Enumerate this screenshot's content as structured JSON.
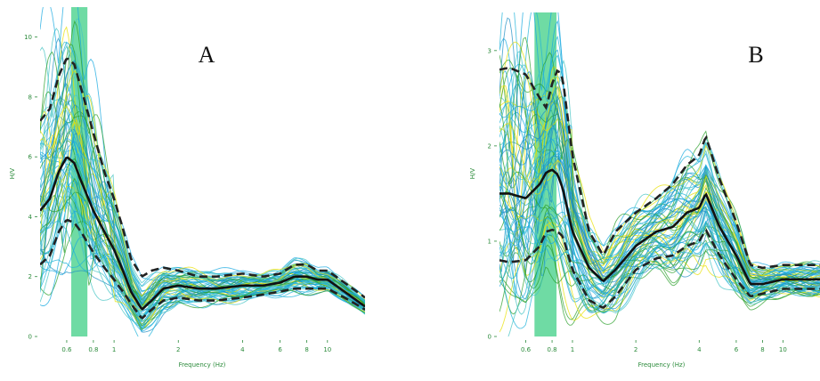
{
  "chart_data": [
    {
      "type": "line",
      "panel_label": "A",
      "xlabel": "Frequency (Hz)",
      "ylabel": "H/V",
      "x_scale": "log",
      "xlim": [
        0.45,
        15
      ],
      "ylim": [
        0,
        11
      ],
      "x_ticks": [
        0.6,
        0.8,
        1,
        2,
        4,
        6,
        8,
        10
      ],
      "x_tick_labels": [
        "0.6",
        "0.8",
        "1",
        "2",
        "4",
        "6",
        "8",
        "10"
      ],
      "y_ticks": [
        0,
        2,
        4,
        6,
        8,
        10
      ],
      "y_tick_labels": [
        "0",
        "2",
        "4",
        "6",
        "8",
        "10"
      ],
      "highlight_band": [
        0.63,
        0.75
      ],
      "grid": false,
      "colors": {
        "mean": "#111111",
        "bounds": "#222222",
        "band": "#3fcf86",
        "window_colors": [
          "#1fb3d9",
          "#17a8e0",
          "#2ca02c",
          "#e8e000",
          "#44c4c4",
          "#1f8fc4"
        ]
      },
      "x": [
        0.45,
        0.5,
        0.55,
        0.6,
        0.65,
        0.7,
        0.8,
        0.9,
        1.0,
        1.1,
        1.2,
        1.35,
        1.5,
        1.7,
        2.0,
        2.5,
        3.0,
        4.0,
        5.0,
        6.0,
        7.0,
        8.0,
        9.0,
        10.0,
        12.0,
        15.0
      ],
      "series": [
        {
          "role": "mean",
          "values": [
            4.2,
            4.6,
            5.5,
            6.0,
            5.8,
            5.2,
            4.2,
            3.5,
            2.9,
            2.2,
            1.5,
            0.9,
            1.2,
            1.6,
            1.7,
            1.6,
            1.6,
            1.7,
            1.7,
            1.8,
            2.0,
            2.0,
            1.9,
            1.9,
            1.5,
            1.0
          ]
        },
        {
          "role": "upper",
          "values": [
            7.2,
            7.6,
            8.7,
            9.3,
            9.1,
            8.3,
            6.8,
            5.5,
            4.6,
            3.6,
            2.6,
            2.0,
            2.2,
            2.3,
            2.2,
            2.0,
            2.0,
            2.1,
            2.0,
            2.1,
            2.4,
            2.4,
            2.2,
            2.2,
            1.8,
            1.3
          ]
        },
        {
          "role": "lower",
          "values": [
            2.4,
            2.7,
            3.5,
            3.9,
            3.8,
            3.5,
            2.8,
            2.3,
            1.9,
            1.5,
            1.1,
            0.6,
            0.9,
            1.2,
            1.3,
            1.2,
            1.2,
            1.3,
            1.4,
            1.5,
            1.6,
            1.6,
            1.6,
            1.6,
            1.3,
            0.9
          ]
        }
      ]
    },
    {
      "type": "line",
      "panel_label": "B",
      "xlabel": "Frequency (Hz)",
      "ylabel": "H/V",
      "x_scale": "log",
      "xlim": [
        0.45,
        15
      ],
      "ylim": [
        0,
        3.4
      ],
      "x_ticks": [
        0.6,
        0.8,
        1,
        2,
        4,
        6,
        8,
        10
      ],
      "x_tick_labels": [
        "0.6",
        "0.8",
        "1",
        "2",
        "4",
        "6",
        "8",
        "10"
      ],
      "y_ticks": [
        0,
        1,
        2,
        3
      ],
      "y_tick_labels": [
        "0",
        "1",
        "2",
        "3"
      ],
      "highlight_band": [
        0.66,
        0.84
      ],
      "grid": false,
      "colors": {
        "mean": "#111111",
        "bounds": "#222222",
        "band": "#3fcf86",
        "window_colors": [
          "#1fb3d9",
          "#17a8e0",
          "#2ca02c",
          "#e8e000",
          "#44c4c4",
          "#1f8fc4"
        ]
      },
      "x": [
        0.45,
        0.5,
        0.6,
        0.7,
        0.75,
        0.8,
        0.85,
        0.9,
        1.0,
        1.2,
        1.4,
        1.6,
        2.0,
        2.5,
        3.0,
        3.5,
        4.0,
        4.3,
        5.0,
        6.0,
        7.0,
        8.0,
        10.0,
        12.0,
        15.0
      ],
      "series": [
        {
          "role": "mean",
          "values": [
            1.5,
            1.5,
            1.45,
            1.6,
            1.72,
            1.75,
            1.7,
            1.55,
            1.1,
            0.72,
            0.58,
            0.7,
            0.95,
            1.1,
            1.15,
            1.3,
            1.35,
            1.5,
            1.15,
            0.85,
            0.55,
            0.55,
            0.6,
            0.6,
            0.6
          ]
        },
        {
          "role": "upper",
          "values": [
            2.8,
            2.82,
            2.75,
            2.5,
            2.4,
            2.65,
            2.8,
            2.7,
            1.9,
            1.1,
            0.85,
            1.1,
            1.3,
            1.45,
            1.6,
            1.8,
            1.9,
            2.1,
            1.65,
            1.2,
            0.75,
            0.72,
            0.75,
            0.75,
            0.75
          ]
        },
        {
          "role": "lower",
          "values": [
            0.8,
            0.78,
            0.8,
            0.95,
            1.1,
            1.12,
            1.1,
            1.05,
            0.7,
            0.38,
            0.3,
            0.42,
            0.7,
            0.82,
            0.85,
            0.95,
            1.0,
            1.12,
            0.85,
            0.6,
            0.42,
            0.45,
            0.5,
            0.5,
            0.5
          ]
        }
      ]
    }
  ]
}
